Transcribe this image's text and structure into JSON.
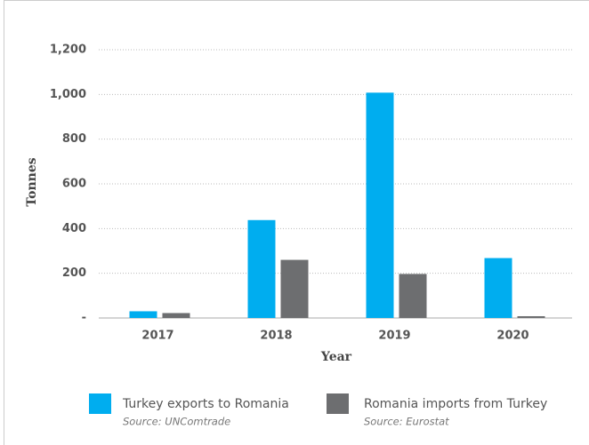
{
  "chart_data": {
    "type": "bar",
    "categories": [
      "2017",
      "2018",
      "2019",
      "2020"
    ],
    "series": [
      {
        "name": "Turkey exports to Romania",
        "source": "Source: UNComtrade",
        "color": "#00adef",
        "values": [
          30,
          438,
          1008,
          268
        ]
      },
      {
        "name": "Romania imports from Turkey",
        "source": "Source: Eurostat",
        "color": "#6d6e70",
        "values": [
          22,
          260,
          197,
          8
        ]
      }
    ],
    "ylim": [
      0,
      1200
    ],
    "yticks": [
      {
        "value": 0,
        "label": "-"
      },
      200,
      400,
      600,
      800,
      {
        "value": 1000,
        "label": "1,000"
      },
      {
        "value": 1200,
        "label": "1,200"
      }
    ],
    "ylabel": "Tonnes",
    "xlabel": "Year",
    "grid": true
  }
}
